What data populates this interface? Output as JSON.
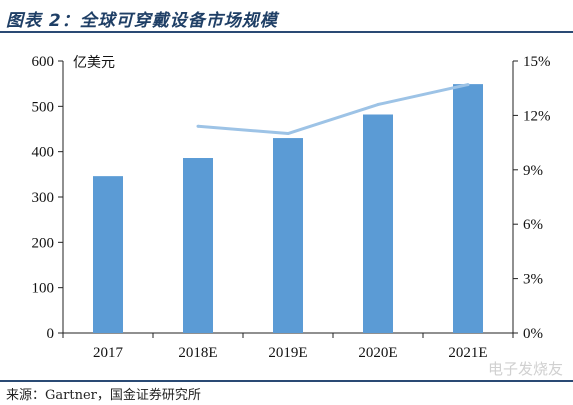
{
  "figure": {
    "title": "图表 2：全球可穿戴设备市场规模",
    "source": "来源：Gartner，国金证券研究所",
    "watermark": "电子发烧友"
  },
  "chart_data": {
    "type": "bar",
    "title": "",
    "unit_label": "亿美元",
    "categories": [
      "2017",
      "2018E",
      "2019E",
      "2020E",
      "2021E"
    ],
    "series": [
      {
        "type": "bar",
        "axis": "left",
        "color": "#5b9bd5",
        "values": [
          346,
          386,
          430,
          482,
          549
        ]
      },
      {
        "type": "line",
        "axis": "right",
        "color": "#9dc3e6",
        "values": [
          null,
          11.4,
          11.0,
          12.6,
          13.7
        ]
      }
    ],
    "y_left": {
      "min": 0,
      "max": 600,
      "ticks": [
        0,
        100,
        200,
        300,
        400,
        500,
        600
      ],
      "tick_labels": [
        "0",
        "100",
        "200",
        "300",
        "400",
        "500",
        "600"
      ]
    },
    "y_right": {
      "min": 0,
      "max": 15,
      "ticks": [
        0,
        3,
        6,
        9,
        12,
        15
      ],
      "tick_labels": [
        "0%",
        "3%",
        "6%",
        "9%",
        "12%",
        "15%"
      ]
    },
    "grid": false
  }
}
